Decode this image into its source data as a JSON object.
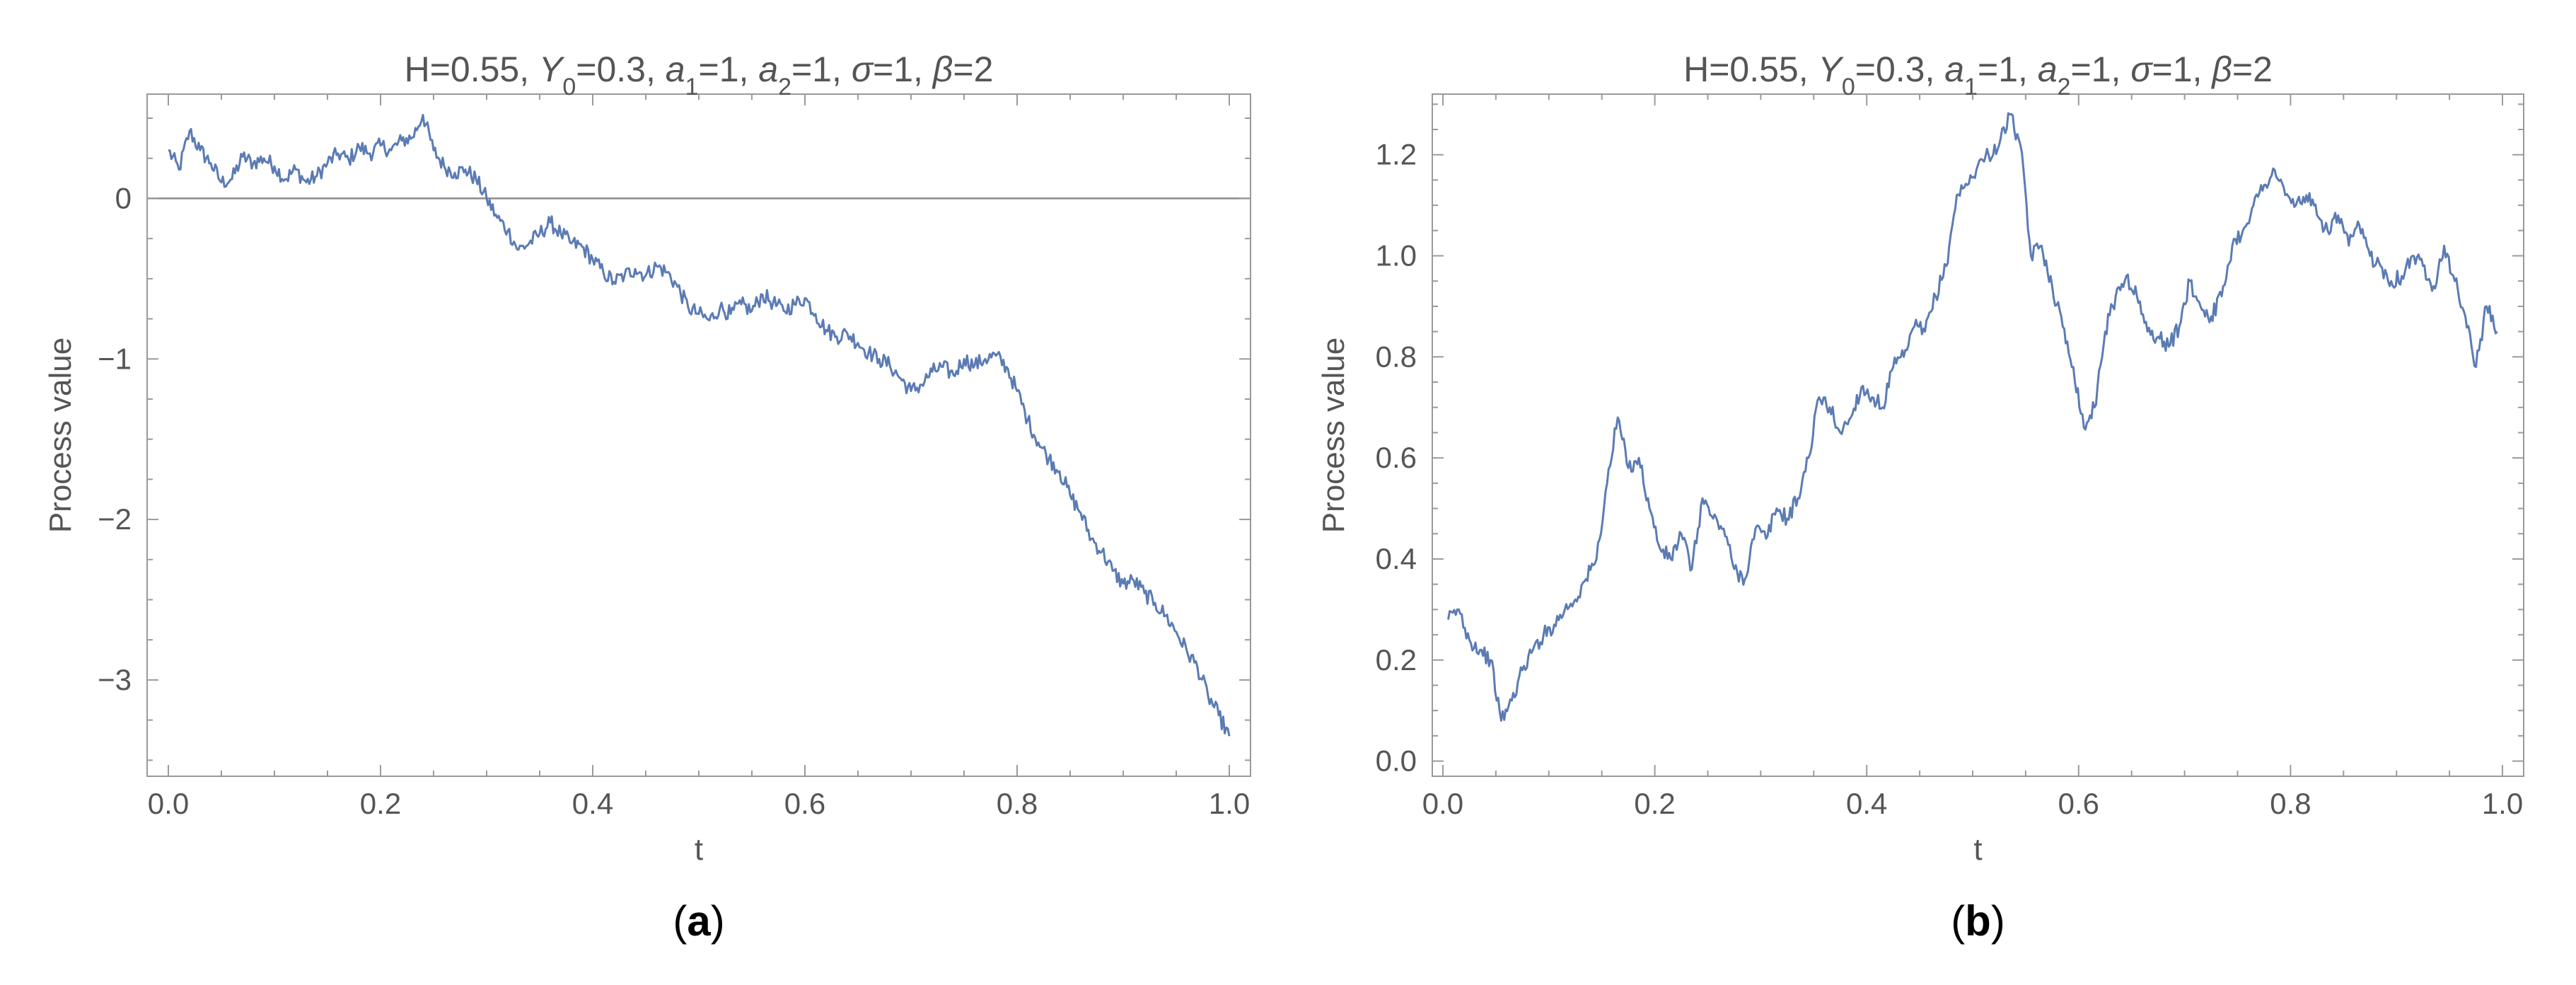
{
  "chart_data": [
    {
      "type": "line",
      "panel_label": "a",
      "title_parts": [
        {
          "text": "H=0.55, "
        },
        {
          "text": "Y",
          "italic": true
        },
        {
          "text": "0",
          "sub": true
        },
        {
          "text": "=0.3, "
        },
        {
          "text": "a",
          "italic": true
        },
        {
          "text": "1",
          "sub": true
        },
        {
          "text": "=1, "
        },
        {
          "text": "a",
          "italic": true
        },
        {
          "text": "2",
          "sub": true
        },
        {
          "text": "=1, "
        },
        {
          "text": "σ",
          "italic": true
        },
        {
          "text": "=1, "
        },
        {
          "text": "β",
          "italic": true
        },
        {
          "text": "=2"
        }
      ],
      "xlabel": "t",
      "ylabel": "Process value",
      "xlim": [
        -0.02,
        1.02
      ],
      "ylim": [
        -3.6,
        0.65
      ],
      "xticks": [
        0.0,
        0.2,
        0.4,
        0.6,
        0.8,
        1.0
      ],
      "xtick_labels": [
        "0.0",
        "0.2",
        "0.4",
        "0.6",
        "0.8",
        "1.0"
      ],
      "yticks": [
        0,
        -1,
        -2,
        -3
      ],
      "ytick_labels": [
        "0",
        "−1",
        "−2",
        "−3"
      ],
      "zero_line": true,
      "grid": false,
      "series": [
        {
          "color": "#5b7bb4",
          "x": [
            0.0,
            0.01,
            0.02,
            0.03,
            0.04,
            0.05,
            0.06,
            0.07,
            0.08,
            0.09,
            0.1,
            0.11,
            0.12,
            0.13,
            0.14,
            0.15,
            0.16,
            0.17,
            0.18,
            0.19,
            0.2,
            0.21,
            0.22,
            0.23,
            0.24,
            0.25,
            0.26,
            0.27,
            0.28,
            0.29,
            0.3,
            0.31,
            0.32,
            0.33,
            0.34,
            0.35,
            0.36,
            0.37,
            0.38,
            0.39,
            0.4,
            0.41,
            0.42,
            0.43,
            0.44,
            0.45,
            0.46,
            0.47,
            0.48,
            0.49,
            0.5,
            0.51,
            0.52,
            0.53,
            0.54,
            0.55,
            0.56,
            0.57,
            0.58,
            0.59,
            0.6,
            0.61,
            0.62,
            0.63,
            0.64,
            0.65,
            0.66,
            0.67,
            0.68,
            0.69,
            0.7,
            0.71,
            0.72,
            0.73,
            0.74,
            0.75,
            0.76,
            0.77,
            0.78,
            0.79,
            0.8,
            0.81,
            0.82,
            0.83,
            0.84,
            0.85,
            0.86,
            0.87,
            0.88,
            0.89,
            0.9,
            0.91,
            0.92,
            0.93,
            0.94,
            0.95,
            0.96,
            0.97,
            0.98,
            0.99,
            1.0
          ],
          "y": [
            0.3,
            0.18,
            0.42,
            0.3,
            0.22,
            0.1,
            0.12,
            0.26,
            0.22,
            0.25,
            0.2,
            0.12,
            0.18,
            0.1,
            0.14,
            0.22,
            0.28,
            0.24,
            0.32,
            0.28,
            0.33,
            0.3,
            0.36,
            0.38,
            0.52,
            0.3,
            0.2,
            0.16,
            0.18,
            0.12,
            0.0,
            -0.12,
            -0.2,
            -0.32,
            -0.28,
            -0.22,
            -0.15,
            -0.22,
            -0.28,
            -0.3,
            -0.38,
            -0.46,
            -0.52,
            -0.48,
            -0.44,
            -0.48,
            -0.42,
            -0.46,
            -0.55,
            -0.68,
            -0.72,
            -0.76,
            -0.68,
            -0.72,
            -0.66,
            -0.7,
            -0.6,
            -0.65,
            -0.7,
            -0.66,
            -0.62,
            -0.72,
            -0.82,
            -0.86,
            -0.84,
            -0.9,
            -0.96,
            -1.0,
            -1.04,
            -1.12,
            -1.2,
            -1.16,
            -1.08,
            -1.05,
            -1.1,
            -1.0,
            -1.04,
            -1.0,
            -0.98,
            -1.05,
            -1.2,
            -1.38,
            -1.52,
            -1.62,
            -1.7,
            -1.85,
            -1.96,
            -2.12,
            -2.2,
            -2.32,
            -2.4,
            -2.38,
            -2.46,
            -2.52,
            -2.6,
            -2.7,
            -2.82,
            -2.92,
            -3.1,
            -3.22,
            -3.35
          ]
        }
      ]
    },
    {
      "type": "line",
      "panel_label": "b",
      "title_parts": [
        {
          "text": "H=0.55, "
        },
        {
          "text": "Y",
          "italic": true
        },
        {
          "text": "0",
          "sub": true
        },
        {
          "text": "=0.3, "
        },
        {
          "text": "a",
          "italic": true
        },
        {
          "text": "1",
          "sub": true
        },
        {
          "text": "=1, "
        },
        {
          "text": "a",
          "italic": true
        },
        {
          "text": "2",
          "sub": true
        },
        {
          "text": "=1, "
        },
        {
          "text": "σ",
          "italic": true
        },
        {
          "text": "=1, "
        },
        {
          "text": "β",
          "italic": true
        },
        {
          "text": "=2"
        }
      ],
      "xlabel": "t",
      "ylabel": "Process value",
      "xlim": [
        -0.01,
        1.02
      ],
      "ylim": [
        -0.03,
        1.32
      ],
      "xticks": [
        0.0,
        0.2,
        0.4,
        0.6,
        0.8,
        1.0
      ],
      "xtick_labels": [
        "0.0",
        "0.2",
        "0.4",
        "0.6",
        "0.8",
        "1.0"
      ],
      "yticks": [
        0.0,
        0.2,
        0.4,
        0.6,
        0.8,
        1.0,
        1.2
      ],
      "ytick_labels": [
        "0.0",
        "0.2",
        "0.4",
        "0.6",
        "0.8",
        "1.0",
        "1.2"
      ],
      "zero_line": false,
      "grid": false,
      "series": [
        {
          "color": "#5b7bb4",
          "x": [
            0.005,
            0.015,
            0.025,
            0.035,
            0.045,
            0.055,
            0.065,
            0.075,
            0.085,
            0.095,
            0.105,
            0.115,
            0.125,
            0.135,
            0.145,
            0.155,
            0.165,
            0.175,
            0.185,
            0.195,
            0.205,
            0.215,
            0.225,
            0.235,
            0.245,
            0.255,
            0.265,
            0.275,
            0.285,
            0.295,
            0.305,
            0.315,
            0.325,
            0.335,
            0.345,
            0.355,
            0.365,
            0.375,
            0.385,
            0.395,
            0.405,
            0.415,
            0.425,
            0.435,
            0.445,
            0.455,
            0.465,
            0.475,
            0.485,
            0.495,
            0.505,
            0.515,
            0.525,
            0.535,
            0.545,
            0.555,
            0.565,
            0.575,
            0.585,
            0.595,
            0.605,
            0.615,
            0.625,
            0.635,
            0.645,
            0.655,
            0.665,
            0.675,
            0.685,
            0.695,
            0.705,
            0.715,
            0.725,
            0.735,
            0.745,
            0.755,
            0.765,
            0.775,
            0.785,
            0.795,
            0.805,
            0.815,
            0.825,
            0.835,
            0.845,
            0.855,
            0.865,
            0.875,
            0.885,
            0.895,
            0.905,
            0.915,
            0.925,
            0.935,
            0.945,
            0.955,
            0.965,
            0.975,
            0.985,
            0.995
          ],
          "y": [
            0.28,
            0.3,
            0.24,
            0.22,
            0.2,
            0.08,
            0.12,
            0.18,
            0.22,
            0.25,
            0.27,
            0.3,
            0.32,
            0.36,
            0.4,
            0.55,
            0.68,
            0.58,
            0.6,
            0.5,
            0.42,
            0.4,
            0.45,
            0.38,
            0.52,
            0.48,
            0.46,
            0.38,
            0.36,
            0.46,
            0.44,
            0.5,
            0.48,
            0.52,
            0.6,
            0.72,
            0.7,
            0.65,
            0.68,
            0.74,
            0.72,
            0.7,
            0.78,
            0.8,
            0.86,
            0.85,
            0.92,
            0.98,
            1.12,
            1.14,
            1.18,
            1.2,
            1.22,
            1.28,
            1.22,
            1.0,
            1.02,
            0.94,
            0.86,
            0.78,
            0.66,
            0.7,
            0.85,
            0.92,
            0.96,
            0.92,
            0.85,
            0.84,
            0.82,
            0.86,
            0.95,
            0.9,
            0.88,
            0.92,
            1.02,
            1.05,
            1.1,
            1.14,
            1.17,
            1.12,
            1.1,
            1.12,
            1.08,
            1.05,
            1.08,
            1.02,
            1.06,
            1.0,
            0.98,
            0.95,
            0.96,
            1.0,
            0.98,
            0.94,
            1.02,
            0.95,
            0.88,
            0.78,
            0.9,
            0.85
          ]
        }
      ]
    }
  ]
}
